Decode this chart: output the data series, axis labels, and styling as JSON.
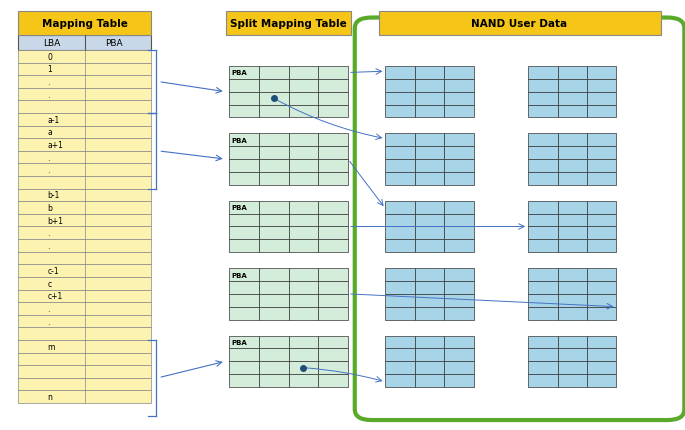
{
  "bg_color": "#ffffff",
  "title_bg": "#f5c518",
  "title_color": "#000000",
  "mapping_table": {
    "title": "Mapping Table",
    "cell_color": "#fdf3b0",
    "header_color": "#c8d8e8",
    "border_color": "#888888"
  },
  "split_mapping_table": {
    "title": "Split Mapping Table",
    "cell_color": "#d4edda",
    "border_color": "#333333"
  },
  "nand_table": {
    "title": "NAND User Data",
    "cell_color": "#a8d4e8",
    "border_color": "#333333",
    "container_color": "#5aaa2a"
  },
  "arrow_color": "#4472c4",
  "dot_color": "#1f4e79",
  "figsize": [
    6.85,
    4.31
  ],
  "dpi": 100
}
